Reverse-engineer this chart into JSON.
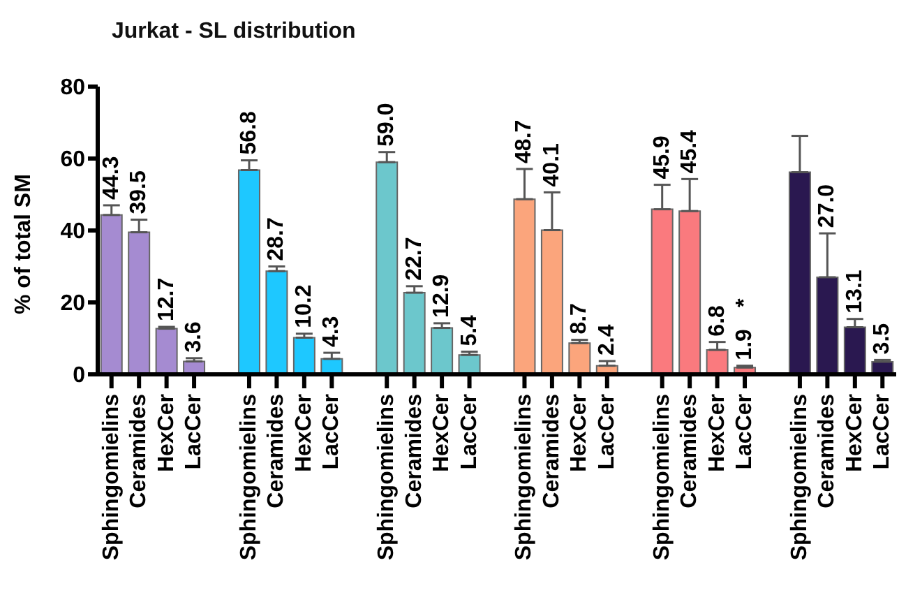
{
  "chart_data": {
    "type": "bar",
    "title": "Jurkat - SL distribution",
    "ylabel": "% of total SM",
    "categories": [
      "Sphingomielins",
      "Ceramides",
      "HexCer",
      "LacCer",
      null,
      "Sphingomielins",
      "Ceramides",
      "HexCer",
      "LacCer",
      null,
      "Sphingomielins",
      "Ceramides",
      "HexCer",
      "LacCer",
      null,
      "Sphingomielins",
      "Ceramides",
      "HexCer",
      "LacCer",
      null,
      "Sphingomielins",
      "Ceramides",
      "HexCer",
      "LacCer",
      null,
      "Sphingomielins",
      "Ceramides",
      "HexCer",
      "LacCer"
    ],
    "values": [
      44.3,
      39.5,
      12.7,
      3.6,
      null,
      56.8,
      28.7,
      10.2,
      4.3,
      null,
      59.0,
      22.7,
      12.9,
      5.4,
      null,
      48.7,
      40.1,
      8.7,
      2.4,
      null,
      45.9,
      45.4,
      6.8,
      1.9,
      null,
      56.2,
      27.0,
      13.1,
      3.5
    ],
    "value_labels": [
      "44.3",
      "39.5",
      "12.7",
      "3.6",
      null,
      "56.8",
      "28.7",
      "10.2",
      "4.3",
      null,
      "59.0",
      "22.7",
      "12.9",
      "5.4",
      null,
      "48.7",
      "40.1",
      "8.7",
      "2.4",
      null,
      "45.9",
      "45.4",
      "6.8",
      "1.9",
      null,
      null,
      "27.0",
      "13.1",
      "3.5"
    ],
    "errors": [
      [
        44.3,
        47.0
      ],
      [
        39.5,
        43.0
      ],
      [
        12.7,
        13.2
      ],
      [
        3.6,
        4.5
      ],
      null,
      [
        56.8,
        59.5
      ],
      [
        28.7,
        30.0
      ],
      [
        10.2,
        11.3
      ],
      [
        4.3,
        6.0
      ],
      null,
      [
        59.0,
        61.8
      ],
      [
        22.7,
        24.5
      ],
      [
        12.9,
        14.2
      ],
      [
        5.4,
        6.3
      ],
      null,
      [
        48.7,
        57.1
      ],
      [
        40.1,
        50.6
      ],
      [
        8.7,
        9.6
      ],
      [
        2.4,
        3.7
      ],
      null,
      [
        45.9,
        52.7
      ],
      [
        45.4,
        54.3
      ],
      [
        6.8,
        9.0
      ],
      [
        1.9,
        2.4
      ],
      null,
      [
        56.2,
        66.3
      ],
      [
        27.0,
        39.2
      ],
      [
        13.1,
        15.4
      ],
      [
        3.5,
        4.0
      ]
    ],
    "colors": [
      "#a58bd1",
      "#a58bd1",
      "#a58bd1",
      "#a58bd1",
      null,
      "#1ec8ff",
      "#1ec8ff",
      "#1ec8ff",
      "#1ec8ff",
      null,
      "#6cc7cc",
      "#6cc7cc",
      "#6cc7cc",
      "#6cc7cc",
      null,
      "#fba57c",
      "#fba57c",
      "#fba57c",
      "#fba57c",
      null,
      "#fa7a7e",
      "#fa7a7e",
      "#fa7a7e",
      "#fa7a7e",
      null,
      "#2a1850",
      "#2a1850",
      "#2a1850",
      "#2a1850"
    ],
    "annotations": [
      "*"
    ],
    "ylim": [
      0,
      80
    ],
    "yticks": [
      0,
      20,
      40,
      60,
      80
    ],
    "grid": false,
    "legend": false
  }
}
